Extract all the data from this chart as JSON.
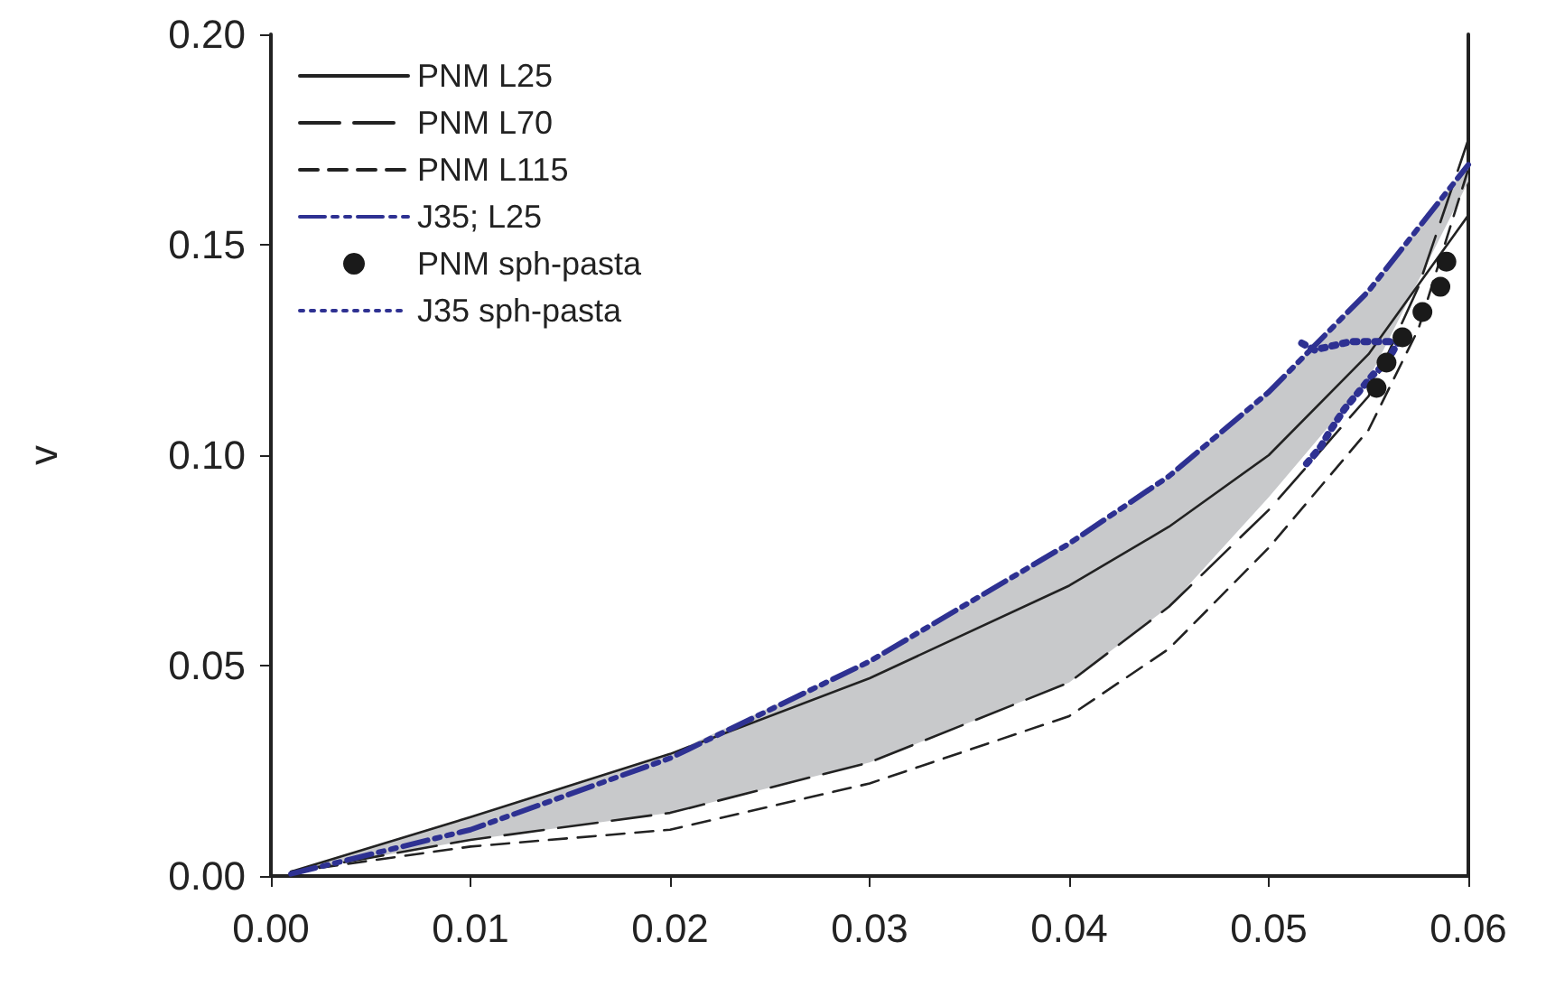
{
  "chart_data": {
    "type": "line",
    "ylabel": "v",
    "xlim": [
      0,
      0.06
    ],
    "xticks": [
      {
        "value": 0,
        "label": "0.00"
      },
      {
        "value": 0.01,
        "label": "0.01"
      },
      {
        "value": 0.02,
        "label": "0.02"
      },
      {
        "value": 0.03,
        "label": "0.03"
      },
      {
        "value": 0.04,
        "label": "0.04"
      },
      {
        "value": 0.05,
        "label": "0.05"
      },
      {
        "value": 0.06,
        "label": "0.06"
      }
    ],
    "ylim": [
      0,
      0.2
    ],
    "yticks": [
      {
        "value": 0,
        "label": "0.00"
      },
      {
        "value": 0.05,
        "label": "0.05"
      },
      {
        "value": 0.1,
        "label": "0.10"
      },
      {
        "value": 0.15,
        "label": "0.15"
      },
      {
        "value": 0.2,
        "label": "0.20"
      }
    ],
    "grid": false,
    "legend": "top left",
    "marker": "none",
    "series": [
      {
        "name": "PNM L25",
        "color": "#222222",
        "line_style": "solid",
        "x": [
          0.001,
          0.01,
          0.02,
          0.03,
          0.04,
          0.045,
          0.05,
          0.055,
          0.06
        ],
        "values": [
          0.001,
          0.014,
          0.029,
          0.047,
          0.069,
          0.083,
          0.1,
          0.124,
          0.157
        ]
      },
      {
        "name": "PNM L70",
        "color": "#222222",
        "line_style": "dashed",
        "x": [
          0.001,
          0.01,
          0.02,
          0.03,
          0.04,
          0.045,
          0.05,
          0.055,
          0.0575,
          0.06
        ],
        "values": [
          0.001,
          0.0086,
          0.015,
          0.027,
          0.046,
          0.064,
          0.087,
          0.114,
          0.14,
          0.175
        ]
      },
      {
        "name": "PNM L115",
        "color": "#222222",
        "line_style": "dashed",
        "x": [
          0.001,
          0.01,
          0.02,
          0.03,
          0.04,
          0.045,
          0.05,
          0.055,
          0.0575,
          0.06
        ],
        "values": [
          0.001,
          0.007,
          0.011,
          0.022,
          0.038,
          0.054,
          0.078,
          0.106,
          0.13,
          0.168
        ]
      },
      {
        "name": "J35; L25",
        "color": "#2e3192",
        "line_style": "dashed",
        "x": [
          0.001,
          0.01,
          0.02,
          0.03,
          0.04,
          0.045,
          0.05,
          0.055,
          0.06
        ],
        "values": [
          0.0005,
          0.011,
          0.028,
          0.051,
          0.079,
          0.095,
          0.115,
          0.139,
          0.169
        ],
        "lower": [
          0.001,
          0.0086,
          0.015,
          0.027,
          0.046,
          0.064,
          0.09,
          0.118,
          0.165
        ],
        "upper": [
          0.001,
          0.014,
          0.029,
          0.051,
          0.079,
          0.095,
          0.115,
          0.139,
          0.169
        ]
      },
      {
        "name": "PNM sph-pasta",
        "type": "scatter",
        "marker": "circle",
        "color": "#1a1a1a",
        "x": [
          0.0554,
          0.0559,
          0.0567,
          0.0577,
          0.0586,
          0.0589
        ],
        "values": [
          0.116,
          0.122,
          0.128,
          0.134,
          0.14,
          0.146
        ]
      },
      {
        "name": "J35 sph-pasta",
        "color": "#2e3192",
        "line_style": "dotted",
        "x": [
          0.0519,
          0.0526,
          0.0531,
          0.0538,
          0.0545,
          0.0552,
          0.0559,
          0.0565,
          0.0558,
          0.055,
          0.0541,
          0.0532,
          0.0523,
          0.0515
        ],
        "values": [
          0.098,
          0.102,
          0.106,
          0.111,
          0.115,
          0.119,
          0.122,
          0.127,
          0.127,
          0.127,
          0.127,
          0.126,
          0.125,
          0.127
        ]
      }
    ]
  }
}
